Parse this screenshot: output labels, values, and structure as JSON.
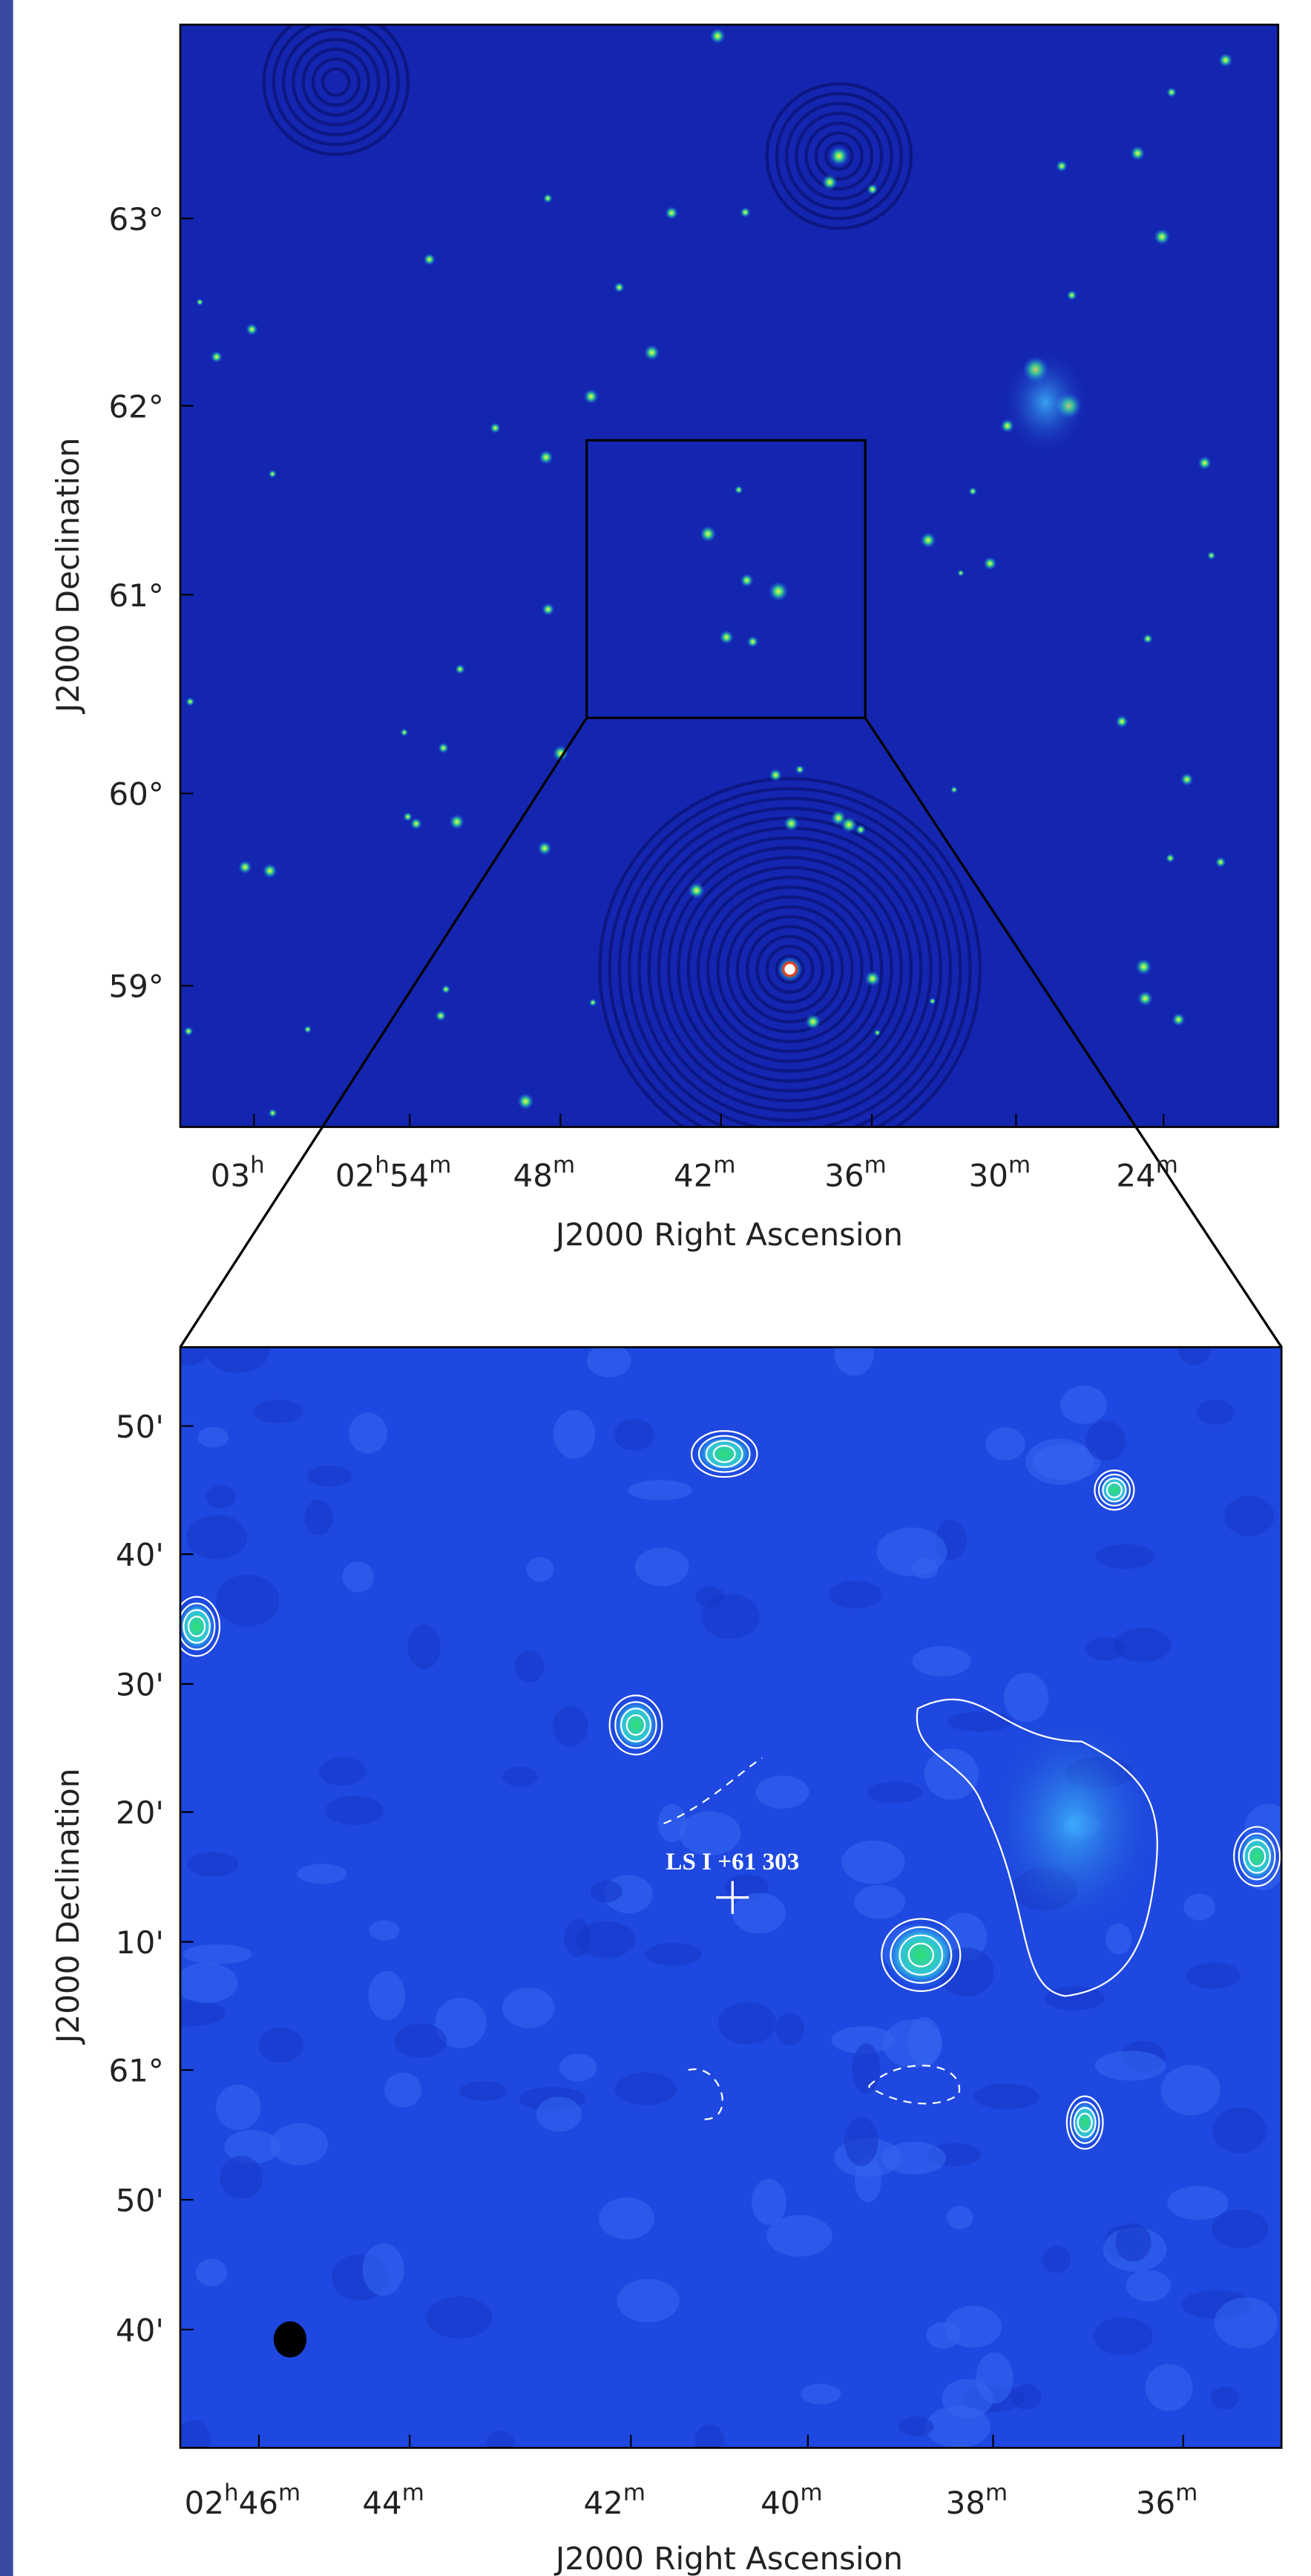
{
  "top_panel": {
    "y_axis_label": "J2000 Declination",
    "x_axis_label": "J2000 Right Ascension",
    "y_ticks": [
      "63°",
      "62°",
      "61°",
      "60°",
      "59°"
    ],
    "x_ticks": [
      "03h",
      "02h54m",
      "48m",
      "42m",
      "36m",
      "30m",
      "24m"
    ]
  },
  "bottom_panel": {
    "y_axis_label": "J2000 Declination",
    "x_axis_label": "J2000 Right Ascension",
    "y_ticks": [
      "50'",
      "40'",
      "30'",
      "20'",
      "10'",
      "61°",
      "50'",
      "40'"
    ],
    "x_ticks": [
      "02h46m",
      "44m",
      "42m",
      "40m",
      "38m",
      "36m"
    ],
    "annotation": "LS I +61 303"
  }
}
